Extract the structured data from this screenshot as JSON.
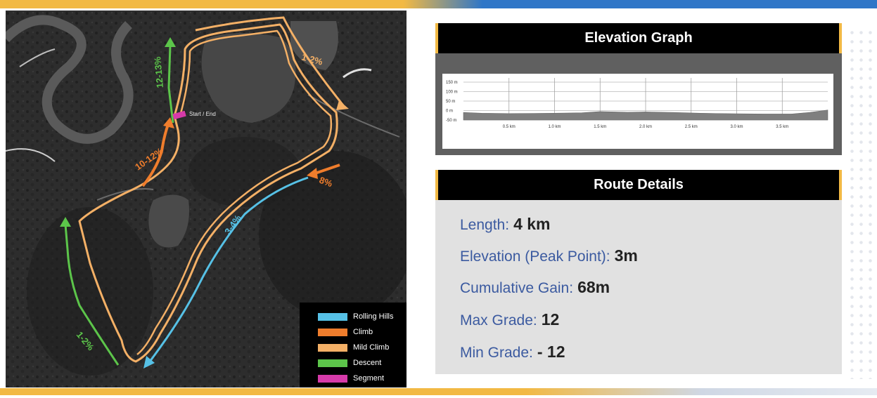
{
  "map": {
    "start_end_label": "Start / End",
    "route_labels": [
      {
        "text": "12-13%",
        "type": "descent"
      },
      {
        "text": "1-2%",
        "type": "mild_climb"
      },
      {
        "text": "10-12%",
        "type": "climb"
      },
      {
        "text": "8%",
        "type": "climb"
      },
      {
        "text": "3-4%",
        "type": "rolling_hills"
      },
      {
        "text": "1-2%",
        "type": "descent"
      }
    ],
    "legend": [
      {
        "label": "Rolling Hills",
        "color": "#56c1e6"
      },
      {
        "label": "Climb",
        "color": "#ef7d2c"
      },
      {
        "label": "Mild Climb",
        "color": "#f4b066"
      },
      {
        "label": "Descent",
        "color": "#5cc54a"
      },
      {
        "label": "Segment",
        "color": "#d63aa9"
      }
    ]
  },
  "elevation_graph": {
    "title": "Elevation Graph",
    "chart_data": {
      "type": "area",
      "x_unit": "km",
      "y_unit": "m",
      "x_tick_labels": [
        "0.5 km",
        "1.0 km",
        "1.5 km",
        "2.0 km",
        "2.5 km",
        "3.0 km",
        "3.5 km"
      ],
      "y_tick_labels": [
        "150 m",
        "100 m",
        "50 m",
        "0 m",
        "-50 m"
      ],
      "y_ticks": [
        150,
        100,
        50,
        0,
        -50
      ],
      "xlim": [
        0,
        4.0
      ],
      "ylim": [
        -50,
        150
      ],
      "x": [
        0,
        0.2,
        0.5,
        1.0,
        1.3,
        1.5,
        1.8,
        2.0,
        2.3,
        2.6,
        3.0,
        3.3,
        3.6,
        3.8,
        4.0
      ],
      "y": [
        -10,
        -14,
        -16,
        -14,
        -12,
        -5,
        -9,
        -7,
        -10,
        -14,
        -17,
        -18,
        -18,
        -10,
        3
      ],
      "grid": true
    }
  },
  "route_details": {
    "title": "Route Details",
    "rows": [
      {
        "label": "Length:",
        "value": "4 km"
      },
      {
        "label": "Elevation (Peak Point):",
        "value": "3m"
      },
      {
        "label": "Cumulative Gain:",
        "value": "68m"
      },
      {
        "label": "Max Grade:",
        "value": "12"
      },
      {
        "label": "Min Grade:",
        "value": "- 12"
      }
    ]
  }
}
